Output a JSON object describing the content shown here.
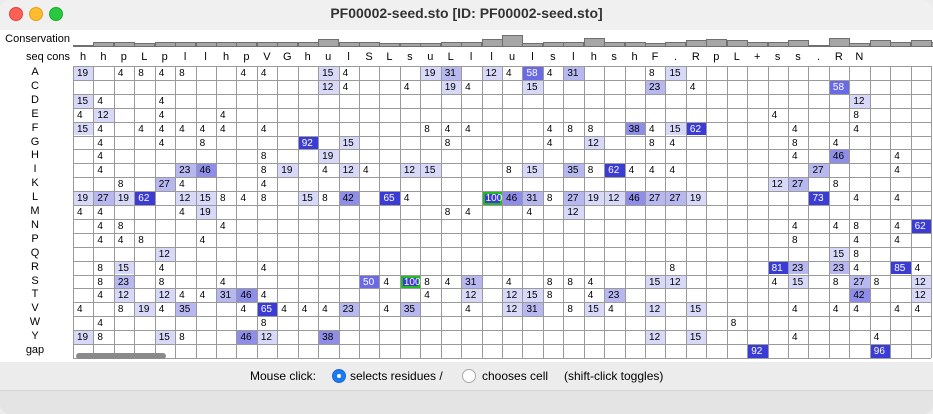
{
  "window": {
    "title": "PF00002-seed.sto [ID: PF00002-seed.sto]"
  },
  "labels": {
    "conservation": "Conservation",
    "seq_cons": "seq cons"
  },
  "conservation": [
    0.1,
    0.4,
    0.4,
    0.3,
    0.4,
    0.4,
    0.4,
    0.4,
    0.4,
    0.4,
    0.4,
    0.4,
    0.6,
    0.4,
    0.4,
    0.3,
    0.3,
    0.3,
    0.4,
    0.4,
    0.6,
    0.9,
    0.3,
    0.4,
    0.4,
    0.7,
    0.4,
    0.4,
    0.3,
    0.4,
    0.5,
    0.6,
    0.5,
    0.4,
    0.4,
    0.5,
    0.0,
    0.7,
    0.3,
    0.5,
    0.4,
    0.5,
    0.4,
    0.0,
    0.5,
    0.5
  ],
  "seq_cons": [
    "h",
    "h",
    "p",
    "L",
    "p",
    "l",
    "l",
    "h",
    "p",
    "V",
    "G",
    "h",
    "u",
    "l",
    "S",
    "L",
    "s",
    "u",
    "L",
    "l",
    "l",
    "u",
    "l",
    "s",
    "l",
    "h",
    "s",
    "h",
    "F",
    ".",
    "R",
    "p",
    "L",
    "+",
    "s",
    "s",
    ".",
    "R",
    "N"
  ],
  "residues": [
    "A",
    "C",
    "D",
    "E",
    "F",
    "G",
    "H",
    "I",
    "K",
    "L",
    "M",
    "N",
    "P",
    "Q",
    "R",
    "S",
    "T",
    "V",
    "W",
    "Y",
    "gap"
  ],
  "cells": {
    "A": [
      [
        0,
        "19"
      ],
      [
        2,
        "4"
      ],
      [
        3,
        "8"
      ],
      [
        4,
        "4"
      ],
      [
        5,
        "8"
      ],
      [
        8,
        "4"
      ],
      [
        9,
        "4"
      ],
      [
        12,
        "15"
      ],
      [
        13,
        "4"
      ],
      [
        17,
        "19"
      ],
      [
        18,
        "31"
      ],
      [
        20,
        "12"
      ],
      [
        21,
        "4"
      ],
      [
        22,
        "58"
      ],
      [
        23,
        "4"
      ],
      [
        24,
        "31"
      ],
      [
        28,
        "8"
      ],
      [
        29,
        "15"
      ]
    ],
    "C": [
      [
        12,
        "12"
      ],
      [
        13,
        "4"
      ],
      [
        16,
        "4"
      ],
      [
        18,
        "19"
      ],
      [
        19,
        "4"
      ],
      [
        22,
        "15"
      ],
      [
        28,
        "23"
      ],
      [
        30,
        "4"
      ],
      [
        37,
        "58"
      ]
    ],
    "D": [
      [
        0,
        "15"
      ],
      [
        1,
        "4"
      ],
      [
        4,
        "4"
      ],
      [
        38,
        "12"
      ]
    ],
    "E": [
      [
        0,
        "4"
      ],
      [
        1,
        "12"
      ],
      [
        4,
        "4"
      ],
      [
        7,
        "4"
      ],
      [
        34,
        "4"
      ],
      [
        38,
        "8"
      ]
    ],
    "F": [
      [
        0,
        "15"
      ],
      [
        1,
        "4"
      ],
      [
        3,
        "4"
      ],
      [
        4,
        "4"
      ],
      [
        5,
        "4"
      ],
      [
        6,
        "4"
      ],
      [
        7,
        "4"
      ],
      [
        9,
        "4"
      ],
      [
        17,
        "8"
      ],
      [
        18,
        "4"
      ],
      [
        19,
        "4"
      ],
      [
        23,
        "4"
      ],
      [
        24,
        "8"
      ],
      [
        25,
        "8"
      ],
      [
        27,
        "38"
      ],
      [
        28,
        "4"
      ],
      [
        29,
        "15"
      ],
      [
        30,
        "62"
      ],
      [
        35,
        "4"
      ],
      [
        38,
        "4"
      ]
    ],
    "G": [
      [
        1,
        "4"
      ],
      [
        4,
        "4"
      ],
      [
        6,
        "8"
      ],
      [
        11,
        "92"
      ],
      [
        13,
        "15"
      ],
      [
        18,
        "8"
      ],
      [
        23,
        "4"
      ],
      [
        25,
        "12"
      ],
      [
        28,
        "8"
      ],
      [
        29,
        "4"
      ],
      [
        35,
        "8"
      ],
      [
        37,
        "4"
      ]
    ],
    "H": [
      [
        1,
        "4"
      ],
      [
        9,
        "8"
      ],
      [
        12,
        "19"
      ],
      [
        35,
        "4"
      ],
      [
        37,
        "46"
      ],
      [
        40,
        "4"
      ]
    ],
    "I": [
      [
        1,
        "4"
      ],
      [
        5,
        "23"
      ],
      [
        6,
        "46"
      ],
      [
        9,
        "8"
      ],
      [
        10,
        "19"
      ],
      [
        12,
        "4"
      ],
      [
        13,
        "12"
      ],
      [
        14,
        "4"
      ],
      [
        16,
        "12"
      ],
      [
        17,
        "15"
      ],
      [
        21,
        "8"
      ],
      [
        22,
        "15"
      ],
      [
        24,
        "35"
      ],
      [
        25,
        "8"
      ],
      [
        26,
        "62"
      ],
      [
        27,
        "4"
      ],
      [
        28,
        "4"
      ],
      [
        29,
        "4"
      ],
      [
        36,
        "27"
      ],
      [
        40,
        "4"
      ]
    ],
    "K": [
      [
        2,
        "8"
      ],
      [
        4,
        "27"
      ],
      [
        5,
        "4"
      ],
      [
        9,
        "4"
      ],
      [
        34,
        "12"
      ],
      [
        35,
        "27"
      ],
      [
        37,
        "8"
      ]
    ],
    "L": [
      [
        0,
        "19"
      ],
      [
        1,
        "27"
      ],
      [
        2,
        "19"
      ],
      [
        3,
        "62"
      ],
      [
        5,
        "12"
      ],
      [
        6,
        "15"
      ],
      [
        7,
        "8"
      ],
      [
        8,
        "4"
      ],
      [
        9,
        "8"
      ],
      [
        11,
        "15"
      ],
      [
        12,
        "8"
      ],
      [
        13,
        "42"
      ],
      [
        15,
        "65"
      ],
      [
        16,
        "4"
      ],
      [
        20,
        "100"
      ],
      [
        21,
        "46"
      ],
      [
        22,
        "31"
      ],
      [
        23,
        "8"
      ],
      [
        24,
        "27"
      ],
      [
        25,
        "19"
      ],
      [
        26,
        "12"
      ],
      [
        27,
        "46"
      ],
      [
        28,
        "27"
      ],
      [
        29,
        "27"
      ],
      [
        30,
        "19"
      ],
      [
        36,
        "73"
      ],
      [
        38,
        "4"
      ],
      [
        40,
        "4"
      ]
    ],
    "M": [
      [
        0,
        "4"
      ],
      [
        1,
        "4"
      ],
      [
        5,
        "4"
      ],
      [
        6,
        "19"
      ],
      [
        18,
        "8"
      ],
      [
        19,
        "4"
      ],
      [
        22,
        "4"
      ],
      [
        24,
        "12"
      ]
    ],
    "N": [
      [
        1,
        "4"
      ],
      [
        2,
        "8"
      ],
      [
        7,
        "4"
      ],
      [
        35,
        "4"
      ],
      [
        37,
        "4"
      ],
      [
        38,
        "8"
      ],
      [
        40,
        "4"
      ],
      [
        41,
        "62"
      ]
    ],
    "P": [
      [
        1,
        "4"
      ],
      [
        2,
        "4"
      ],
      [
        3,
        "8"
      ],
      [
        6,
        "4"
      ],
      [
        35,
        "8"
      ],
      [
        38,
        "4"
      ],
      [
        40,
        "4"
      ]
    ],
    "Q": [
      [
        4,
        "12"
      ],
      [
        37,
        "15"
      ],
      [
        38,
        "8"
      ]
    ],
    "R": [
      [
        1,
        "8"
      ],
      [
        2,
        "15"
      ],
      [
        4,
        "4"
      ],
      [
        9,
        "4"
      ],
      [
        29,
        "8"
      ],
      [
        34,
        "81"
      ],
      [
        35,
        "23"
      ],
      [
        37,
        "23"
      ],
      [
        38,
        "4"
      ],
      [
        40,
        "85"
      ],
      [
        41,
        "4"
      ]
    ],
    "S": [
      [
        1,
        "8"
      ],
      [
        2,
        "23"
      ],
      [
        4,
        "8"
      ],
      [
        7,
        "4"
      ],
      [
        14,
        "50"
      ],
      [
        15,
        "4"
      ],
      [
        16,
        "100"
      ],
      [
        17,
        "8"
      ],
      [
        18,
        "4"
      ],
      [
        19,
        "31"
      ],
      [
        21,
        "4"
      ],
      [
        23,
        "8"
      ],
      [
        24,
        "8"
      ],
      [
        25,
        "4"
      ],
      [
        28,
        "15"
      ],
      [
        29,
        "12"
      ],
      [
        34,
        "4"
      ],
      [
        35,
        "15"
      ],
      [
        37,
        "8"
      ],
      [
        38,
        "27"
      ],
      [
        39,
        "8"
      ],
      [
        41,
        "12"
      ]
    ],
    "T": [
      [
        1,
        "4"
      ],
      [
        2,
        "12"
      ],
      [
        4,
        "12"
      ],
      [
        5,
        "4"
      ],
      [
        6,
        "4"
      ],
      [
        7,
        "31"
      ],
      [
        8,
        "46"
      ],
      [
        9,
        "4"
      ],
      [
        17,
        "4"
      ],
      [
        19,
        "12"
      ],
      [
        21,
        "12"
      ],
      [
        22,
        "15"
      ],
      [
        23,
        "8"
      ],
      [
        25,
        "4"
      ],
      [
        26,
        "23"
      ],
      [
        38,
        "42"
      ],
      [
        41,
        "12"
      ]
    ],
    "V": [
      [
        0,
        "4"
      ],
      [
        2,
        "8"
      ],
      [
        3,
        "19"
      ],
      [
        4,
        "4"
      ],
      [
        5,
        "35"
      ],
      [
        8,
        "4"
      ],
      [
        9,
        "65"
      ],
      [
        10,
        "4"
      ],
      [
        11,
        "4"
      ],
      [
        12,
        "4"
      ],
      [
        13,
        "23"
      ],
      [
        15,
        "4"
      ],
      [
        16,
        "35"
      ],
      [
        19,
        "4"
      ],
      [
        21,
        "12"
      ],
      [
        22,
        "31"
      ],
      [
        24,
        "8"
      ],
      [
        25,
        "15"
      ],
      [
        26,
        "4"
      ],
      [
        28,
        "12"
      ],
      [
        30,
        "15"
      ],
      [
        35,
        "4"
      ],
      [
        37,
        "4"
      ],
      [
        38,
        "4"
      ],
      [
        40,
        "4"
      ],
      [
        41,
        "4"
      ]
    ],
    "W": [
      [
        1,
        "4"
      ],
      [
        9,
        "8"
      ],
      [
        32,
        "8"
      ]
    ],
    "Y": [
      [
        0,
        "19"
      ],
      [
        1,
        "8"
      ],
      [
        4,
        "15"
      ],
      [
        5,
        "8"
      ],
      [
        8,
        "46"
      ],
      [
        9,
        "12"
      ],
      [
        12,
        "38"
      ],
      [
        28,
        "12"
      ],
      [
        30,
        "15"
      ],
      [
        35,
        "4"
      ],
      [
        39,
        "4"
      ]
    ],
    "gap": [
      [
        33,
        "92"
      ],
      [
        39,
        "96"
      ]
    ]
  },
  "selected_cells": [
    [
      "L",
      20
    ],
    [
      "S",
      16
    ]
  ],
  "bottom_bar": {
    "prefix": "Mouse click:",
    "option1": "selects residues /",
    "option2": "chooses cell",
    "suffix": "(shift-click toggles)"
  }
}
